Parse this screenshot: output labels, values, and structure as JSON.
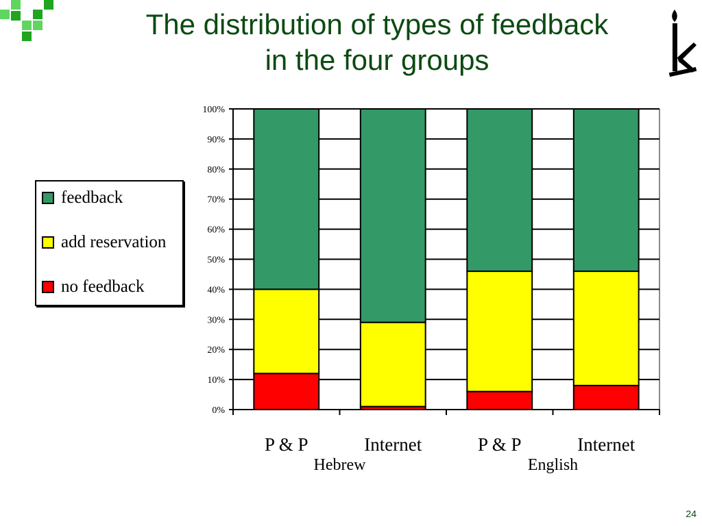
{
  "slide": {
    "title_line1": "The distribution of types of feedback",
    "title_line2": "in the four groups",
    "page_number": "24"
  },
  "chart_data": {
    "type": "bar",
    "stacked": true,
    "percent": true,
    "categories": [
      "P & P",
      "Internet",
      "P & P",
      "Internet"
    ],
    "groups": [
      {
        "label": "Hebrew",
        "categories": [
          0,
          1
        ]
      },
      {
        "label": "English",
        "categories": [
          2,
          3
        ]
      }
    ],
    "series": [
      {
        "name": "no feedback",
        "color": "#ff0000",
        "values": [
          12,
          1,
          6,
          8
        ]
      },
      {
        "name": "add reservation",
        "color": "#ffff00",
        "values": [
          28,
          28,
          40,
          38
        ]
      },
      {
        "name": "feedback",
        "color": "#339966",
        "values": [
          60,
          71,
          54,
          54
        ]
      }
    ],
    "y_ticks": [
      "0%",
      "10%",
      "20%",
      "30%",
      "40%",
      "50%",
      "60%",
      "70%",
      "80%",
      "90%",
      "100%"
    ],
    "ylim": [
      0,
      100
    ],
    "grid": true,
    "legend_position": "left"
  }
}
